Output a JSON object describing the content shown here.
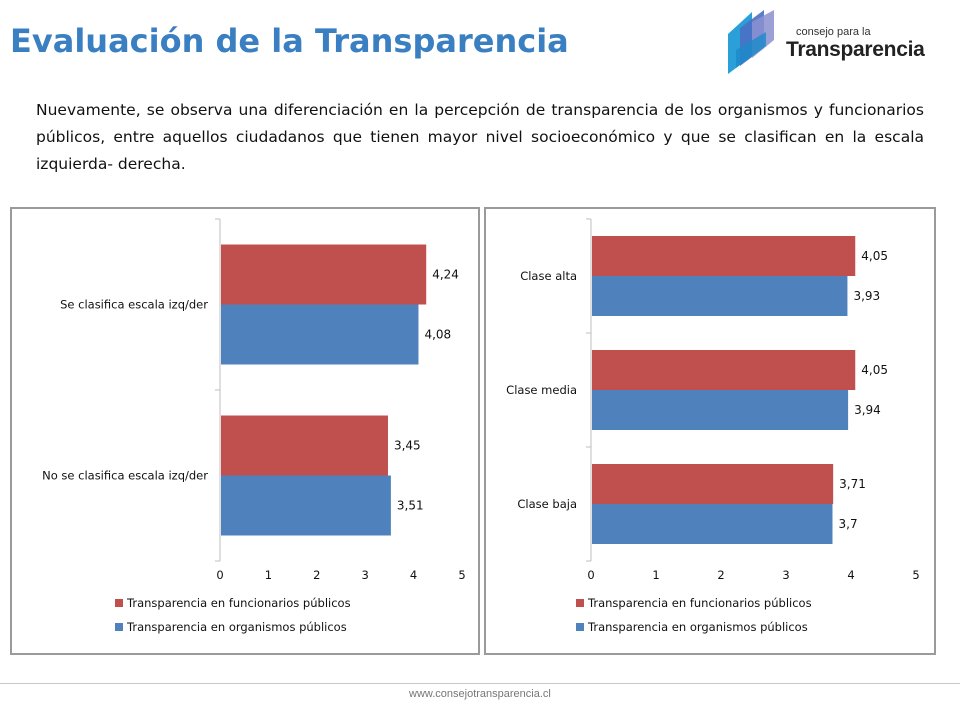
{
  "header": {
    "title": "Evaluación de la Transparencia",
    "logo_line1": "consejo para la",
    "logo_line2": "Transparencia"
  },
  "body_text": "Nuevamente, se observa una diferenciación en la percepción de transparencia de los organismos y funcionarios públicos, entre aquellos ciudadanos que tienen mayor nivel socioeconómico y que se clasifican en la escala izquierda- derecha.",
  "footer": {
    "url": "www.consejotransparencia.cl"
  },
  "colors": {
    "funcionarios": "#c0504d",
    "organismos": "#4f81bd",
    "title": "#3a7fc1"
  },
  "chart_data": [
    {
      "type": "bar",
      "orientation": "horizontal",
      "categories": [
        "Se clasifica escala izq/der",
        "No se clasifica escala izq/der"
      ],
      "series": [
        {
          "name": "Transparencia en funcionarios públicos",
          "values": [
            4.24,
            3.45
          ],
          "labels": [
            "4,24",
            "3,45"
          ]
        },
        {
          "name": "Transparencia en organismos públicos",
          "values": [
            4.08,
            3.51
          ],
          "labels": [
            "4,08",
            "3,51"
          ]
        }
      ],
      "xlim": [
        0,
        5
      ],
      "ticks": [
        "0",
        "1",
        "2",
        "3",
        "4",
        "5"
      ],
      "legend_position": "bottom"
    },
    {
      "type": "bar",
      "orientation": "horizontal",
      "categories": [
        "Clase alta",
        "Clase media",
        "Clase baja"
      ],
      "series": [
        {
          "name": "Transparencia en funcionarios públicos",
          "values": [
            4.05,
            4.05,
            3.71
          ],
          "labels": [
            "4,05",
            "4,05",
            "3,71"
          ]
        },
        {
          "name": "Transparencia en organismos públicos",
          "values": [
            3.93,
            3.94,
            3.7
          ],
          "labels": [
            "3,93",
            "3,94",
            "3,7"
          ]
        }
      ],
      "xlim": [
        0,
        5
      ],
      "ticks": [
        "0",
        "1",
        "2",
        "3",
        "4",
        "5"
      ],
      "legend_position": "bottom"
    }
  ]
}
